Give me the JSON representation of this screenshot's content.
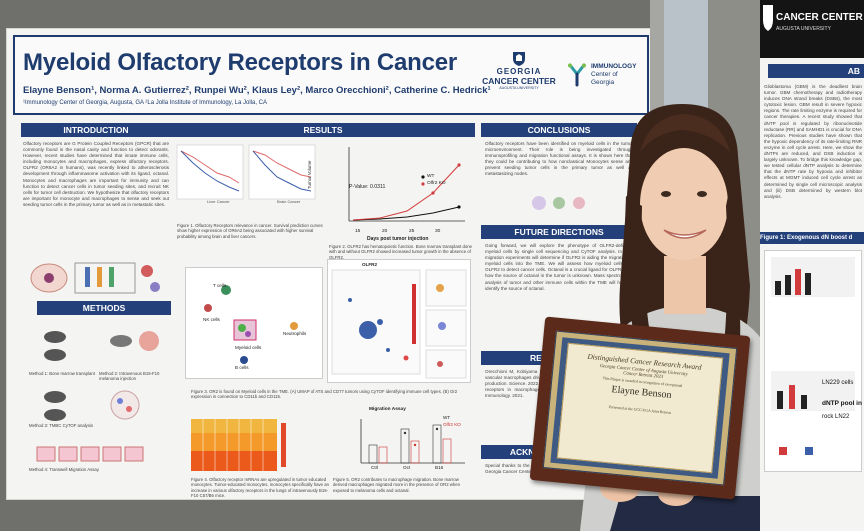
{
  "poster": {
    "title": "Myeloid Olfactory Receptors in Cancer",
    "authors": "Elayne Benson¹, Norma A. Gutierrez², Runpei Wu², Klaus Ley², Marco Orecchioni², Catherine C. Hedrick¹",
    "affiliations": "¹Immunology Center of Georgia, Augusta, GA  ²La Jolla Institute of Immunology, La Jolla, CA",
    "logo_georgia": "GEORGIA",
    "logo_cancer_center": "CANCER CENTER",
    "logo_augusta": "AUGUSTA UNIVERSITY",
    "logo_immunology": "IMMUNOLOGY",
    "logo_center_of": "Center of",
    "logo_georgia2": "Georgia",
    "sections": {
      "introduction": "INTRODUCTION",
      "methods": "METHODS",
      "results": "RESULTS",
      "conclusions": "CONCLUSIONS",
      "future_directions": "FUTURE DIRECTIONS",
      "references": "REFERENCES",
      "acknowledgements": "ACKNOWLEDGEMENTS"
    },
    "intro_text": "Olfactory receptors are G Protein Coupled Receptors (GPCR) that are commonly found in the nasal cavity and function to detect odorants. However, recent studies have determined that innate immune cells, including monocytes and macrophages, express olfactory receptors. OLFR2 (OR6A2 in humans), was recently linked to atherosclerosis development through inflammasome activation with its ligand, octanal. Monocytes and macrophages are important for immunity and can function to detect cancer cells in tumor seeding sites, and recruit NK cells for tumor cell destruction. We hypothesize that olfactory receptors are important for monocyte and macrophages to sense and seek out seeding tumor cells in the primary tumor as well as in metastatic sites.",
    "conclusions_text": "Olfactory receptors have been identified on myeloid cells in the tumor microenvironment. Their role is being investigated through immunoprofiling and migration functional assays. It is shown here that they could be contributing to how nonclassical Monocytes sense and prevent seeding tumor cells in the primary tumor as well as metastasizing nodes.",
    "future_text": "Going forward, we will explore the phenotype of OLFR2-deficient myeloid cells by single cell sequencing and CyTOF analysis. In vitro migration experiments will determine if OLFR2 is aiding the migration of myeloid cells into the TME. We will assess how myeloid cells use OLFR2 to detect cancer cells. Octanal is a crucial ligand for OLFR2, but how the source of octanal in the tumor is unknown. Mass spectrometry analysis of tumor and other immune cells within the TME will help us identify the source of octanal.",
    "references_text": "Orecchioni M, Kobiyama K, Winkels H et al. Olfactory receptor 2 in vascular macrophages drives atherosclerosis by NLRP3-dependent IL-1 production. Science. 2022. Congcong Wang, Katrin Vogel et al. Olfactory receptors in macrophages: potential for atherosclerosis. Trends in Immunology. 2021.",
    "ack_text": "Special thanks to the Boettcher Foundation and the department in the Georgia Cancer Center.",
    "fig1_caption": "Figure 1. Olfactory Receptors relevance in cancer. Survival prediction curves show higher expression of OR6A2 being associated with higher survival probability among brain and liver cancers.",
    "fig2_caption": "Figure 2. OLFR2 has hematopoietic function. Bone marrow transplant done with and without OLFR2 showed increased tumor growth in the absence of OLFR2.",
    "fig3_caption": "Figure 3. OR2 is found on Myeloid cells in the TME. (A) UMAP of ATS and CD77 tumors using CyTOF identifying immune cell types. (B) Or2 expression in connection to CD11b and CD115.",
    "fig4_caption": "Figure 4. Olfactory receptor mRNAs are upregulated in tumor educated monocytes. Tumor-educated monocytes, monocytes specifically have an increase in various olfactory receptors in the lungs of intravenously B16-F10 C57/B6 mice.",
    "fig5_caption": "Figure 5. OR2 contributes to macrophage migration. Bone marrow derived macrophages migrated more in the presence of OR2 when exposed to melanoma cells and octanal.",
    "methods_caption_1": "Method 1: Bone marrow transplant",
    "methods_caption_2": "Method 2: Intravenous B16-F10 melanoma injection",
    "methods_caption_3": "Method 3: TMBC CyTOF analysis",
    "methods_caption_4": "Method 4: Transwell Migration Assay",
    "chart_pvalue": "P-Value: 0.0311",
    "chart_xlabel": "Days post tumor injection",
    "chart_ylabel": "Tumor Volume",
    "legend_wt": "WT",
    "legend_ko": "Olfr2 KO",
    "x_ticks": [
      "15",
      "20",
      "25",
      "30"
    ],
    "liver_cancer": "Liver Cancer",
    "brain_cancer": "Brain Cancer",
    "umap_labels": {
      "t_cells": "T cells",
      "nk_cells": "NK cells",
      "myeloid": "Myeloid cells",
      "neutrophils": "Neutrophils",
      "b_cells": "B cells",
      "olfr2": "OLFR2"
    },
    "migration_title": "Migration Assay",
    "migration_xticks": [
      "Ctrl",
      "Oct",
      "B16"
    ],
    "migration_legend_wt": "WT",
    "migration_legend_ko": "Olfr2 KO"
  },
  "plaque": {
    "award": "Distinguished Cancer Research Award",
    "org": "Georgia Cancer Center of Augusta University",
    "event": "Cancer Retreat 2023",
    "this_plaque": "This Plaque is awarded in recognition of exceptional",
    "name": "Elayne Benson",
    "presented": "Presented at the GCC/UGA Joint Retreat"
  },
  "right_poster": {
    "cc_label": "CANCER CENTER",
    "au_label": "AUGUSTA UNIVERSITY",
    "ab_label": "AB",
    "text": "Glioblastoma (GBM) is the deadliest brain tumor. GBM chemotherapy and radiotherapy induces DNA strand breaks (DSBs), the most cytotoxic lesion. GBM result in severe hypoxic regions. The rate limiting enzyme is required for cancer therapies. A recent study showed that dNTP pool is regulated by ribonucleotide reductase (RR) and SAMHD1 is crucial for DNA replication. Previous studies have shown that the hypoxic dependency of its rate-limiting RNR enzyme in cell cycle arrest. Here, we show the dNTPs are reduced, and DSB induction is largely unknown. To bridge this knowledge gap, we tested cellular dNTP analysis to determine that the dNTP rate by hypoxia and inhibitor effects at MGMT induced cell cycle arrest as determined by single cell microscopic analysis and (iii) DSB determined by western blot analysis.",
    "fig_title": "Figure 1: Exogenous dN boost d",
    "labels": [
      "dNTP pool in",
      "LN229 cells",
      "rock LN22"
    ]
  }
}
